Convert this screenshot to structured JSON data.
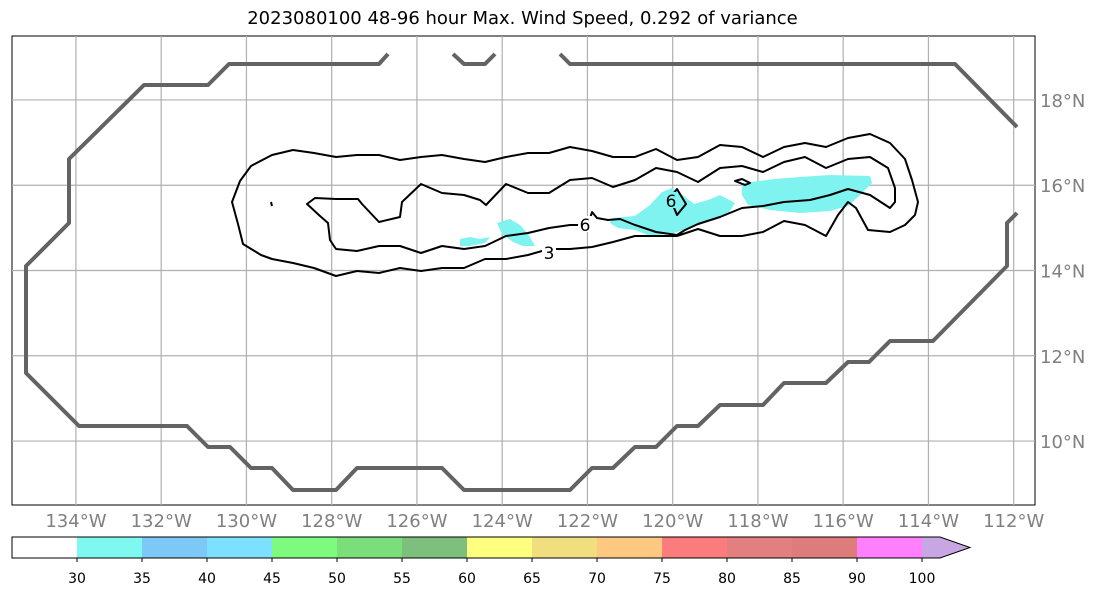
{
  "title": "2023080100 48-96 hour Max. Wind Speed, 0.292 of variance",
  "map": {
    "lon_range": [
      -135.5,
      -111.5
    ],
    "lat_range": [
      8.5,
      19.5
    ],
    "lon_ticks": [
      -134,
      -132,
      -130,
      -128,
      -126,
      -124,
      -122,
      -120,
      -118,
      -116,
      -114,
      -112
    ],
    "lat_ticks": [
      10,
      12,
      14,
      16,
      18
    ],
    "lon_tick_labels": [
      "134°W",
      "132°W",
      "130°W",
      "128°W",
      "126°W",
      "124°W",
      "122°W",
      "120°W",
      "118°W",
      "116°W",
      "114°W",
      "112°W"
    ],
    "lat_tick_labels": [
      "10°N",
      "12°N",
      "14°N",
      "16°N",
      "18°N"
    ],
    "grid": true,
    "contour_labels": [
      "6",
      "6",
      "3"
    ]
  },
  "colorbar": {
    "levels": [
      "30",
      "35",
      "40",
      "45",
      "50",
      "55",
      "60",
      "65",
      "70",
      "75",
      "80",
      "85",
      "90",
      "100"
    ],
    "colors": [
      "#ffffff",
      "#7ff9f0",
      "#7cc9f8",
      "#7ee0ff",
      "#7efb7e",
      "#7ade7a",
      "#7dbf7d",
      "#ffff7f",
      "#f1df7f",
      "#ffc880",
      "#fa7c7c",
      "#e37f7f",
      "#de7b7b",
      "#ff7fff",
      "#c8a6e3"
    ],
    "extend": "max"
  },
  "colors": {
    "outline": "#636363",
    "contour": "#000000",
    "shade": "#7ff3f0",
    "grid": "#b0b0b0"
  }
}
